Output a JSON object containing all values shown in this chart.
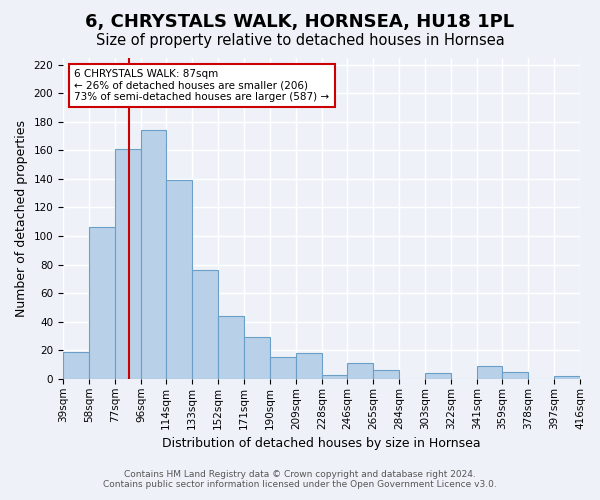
{
  "title": "6, CHRYSTALS WALK, HORNSEA, HU18 1PL",
  "subtitle": "Size of property relative to detached houses in Hornsea",
  "xlabel": "Distribution of detached houses by size in Hornsea",
  "ylabel": "Number of detached properties",
  "bar_values": [
    19,
    106,
    161,
    174,
    139,
    76,
    44,
    29,
    15,
    18,
    3,
    11,
    6,
    0,
    4,
    0,
    9,
    5,
    0,
    2
  ],
  "bin_edges": [
    39,
    58,
    77,
    96,
    114,
    133,
    152,
    171,
    190,
    209,
    228,
    246,
    265,
    284,
    303,
    322,
    341,
    359,
    378,
    397,
    416
  ],
  "bin_labels": [
    "39sqm",
    "58sqm",
    "77sqm",
    "96sqm",
    "114sqm",
    "133sqm",
    "152sqm",
    "171sqm",
    "190sqm",
    "209sqm",
    "228sqm",
    "246sqm",
    "265sqm",
    "284sqm",
    "303sqm",
    "322sqm",
    "341sqm",
    "359sqm",
    "378sqm",
    "397sqm",
    "416sqm"
  ],
  "bar_color": "#b8d0e8",
  "bar_edge_color": "#6aa0c8",
  "vline_x": 87,
  "vline_color": "#cc0000",
  "annotation_line1": "6 CHRYSTALS WALK: 87sqm",
  "annotation_line2": "← 26% of detached houses are smaller (206)",
  "annotation_line3": "73% of semi-detached houses are larger (587) →",
  "annotation_box_color": "#cc0000",
  "ylim": [
    0,
    225
  ],
  "yticks": [
    0,
    20,
    40,
    60,
    80,
    100,
    120,
    140,
    160,
    180,
    200,
    220
  ],
  "footer1": "Contains HM Land Registry data © Crown copyright and database right 2024.",
  "footer2": "Contains public sector information licensed under the Open Government Licence v3.0.",
  "bg_color": "#eef2f8",
  "plot_bg_color": "#eef2f8",
  "grid_color": "#ffffff",
  "title_fontsize": 13,
  "subtitle_fontsize": 10.5,
  "axis_label_fontsize": 9,
  "tick_fontsize": 7.5,
  "footer_fontsize": 6.5
}
